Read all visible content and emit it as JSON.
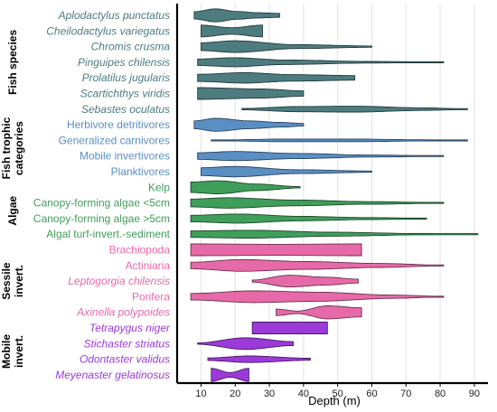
{
  "chart_data": {
    "type": "violin",
    "xlabel": "Depth (m)",
    "xlim": [
      3,
      94
    ],
    "xticks": [
      10,
      20,
      30,
      40,
      50,
      60,
      70,
      80,
      90
    ],
    "grid": true,
    "groups": [
      {
        "name": "Fish species",
        "color": "#4d7c7f",
        "label_lines": [
          "Fish species"
        ]
      },
      {
        "name": "Fish trophic categories",
        "color": "#5a8fc4",
        "label_lines": [
          "Fish trophic",
          "categories"
        ]
      },
      {
        "name": "Algae",
        "color": "#3f9e5a",
        "label_lines": [
          "Algae"
        ]
      },
      {
        "name": "Sessile invert.",
        "color": "#e76aa8",
        "label_lines": [
          "Sessile",
          "invert."
        ]
      },
      {
        "name": "Mobile invert.",
        "color": "#9c3ad9",
        "label_lines": [
          "Mobile",
          "invert."
        ]
      }
    ],
    "categories": [
      {
        "label": "Aplodactylus punctatus",
        "group": 0,
        "italic": true,
        "min": 8,
        "max": 33,
        "profile": [
          [
            0,
            0.55
          ],
          [
            0.25,
            1
          ],
          [
            0.5,
            0.6
          ],
          [
            0.75,
            0.4
          ],
          [
            1,
            0.3
          ]
        ]
      },
      {
        "label": "Cheilodactylus variegatus",
        "group": 0,
        "italic": true,
        "min": 10,
        "max": 28,
        "profile": [
          [
            0,
            0.9
          ],
          [
            0.5,
            0.5
          ],
          [
            1,
            0.9
          ]
        ]
      },
      {
        "label": "Chromis crusma",
        "group": 0,
        "italic": true,
        "min": 10,
        "max": 60,
        "profile": [
          [
            0,
            0.6
          ],
          [
            0.2,
            0.9
          ],
          [
            0.55,
            0.3
          ],
          [
            1,
            0.1
          ]
        ]
      },
      {
        "label": "Pinguipes chilensis",
        "group": 0,
        "italic": true,
        "min": 9,
        "max": 81,
        "profile": [
          [
            0,
            0.5
          ],
          [
            0.15,
            0.7
          ],
          [
            0.35,
            0.35
          ],
          [
            0.7,
            0.12
          ],
          [
            1,
            0.05
          ]
        ]
      },
      {
        "label": "Prolatilus jugularis",
        "group": 0,
        "italic": true,
        "min": 9,
        "max": 55,
        "profile": [
          [
            0,
            0.55
          ],
          [
            0.3,
            0.8
          ],
          [
            0.6,
            0.5
          ],
          [
            1,
            0.35
          ]
        ]
      },
      {
        "label": "Scartichthys viridis",
        "group": 0,
        "italic": true,
        "min": 9,
        "max": 40,
        "profile": [
          [
            0,
            0.9
          ],
          [
            0.6,
            0.7
          ],
          [
            1,
            0.4
          ]
        ]
      },
      {
        "label": "Sebastes oculatus",
        "group": 0,
        "italic": true,
        "min": 22,
        "max": 88,
        "profile": [
          [
            0,
            0.1
          ],
          [
            0.25,
            0.4
          ],
          [
            0.5,
            0.45
          ],
          [
            0.8,
            0.2
          ],
          [
            1,
            0.05
          ]
        ]
      },
      {
        "label": "Herbivore detritivores",
        "group": 1,
        "italic": false,
        "min": 8,
        "max": 40,
        "profile": [
          [
            0,
            0.6
          ],
          [
            0.2,
            1
          ],
          [
            0.5,
            0.6
          ],
          [
            0.8,
            0.35
          ],
          [
            1,
            0.2
          ]
        ]
      },
      {
        "label": "Generalized  carnivores",
        "group": 1,
        "italic": false,
        "min": 13,
        "max": 88,
        "profile": [
          [
            0,
            0.05
          ],
          [
            0.3,
            0.2
          ],
          [
            0.55,
            0.2
          ],
          [
            0.8,
            0.1
          ],
          [
            1,
            0.02
          ]
        ]
      },
      {
        "label": "Mobile invertivores",
        "group": 1,
        "italic": false,
        "min": 9,
        "max": 81,
        "profile": [
          [
            0,
            0.5
          ],
          [
            0.15,
            0.7
          ],
          [
            0.4,
            0.4
          ],
          [
            0.7,
            0.15
          ],
          [
            1,
            0.05
          ]
        ]
      },
      {
        "label": "Planktivores",
        "group": 1,
        "italic": false,
        "min": 10,
        "max": 60,
        "profile": [
          [
            0,
            0.6
          ],
          [
            0.2,
            0.8
          ],
          [
            0.55,
            0.3
          ],
          [
            1,
            0.1
          ]
        ]
      },
      {
        "label": "Kelp",
        "group": 2,
        "italic": false,
        "min": 7,
        "max": 39,
        "profile": [
          [
            0,
            0.8
          ],
          [
            0.25,
            1
          ],
          [
            0.6,
            0.5
          ],
          [
            1,
            0.1
          ]
        ]
      },
      {
        "label": "Canopy-forming algae <5cm",
        "group": 2,
        "italic": false,
        "min": 7,
        "max": 81,
        "profile": [
          [
            0,
            0.6
          ],
          [
            0.15,
            0.8
          ],
          [
            0.4,
            0.45
          ],
          [
            0.7,
            0.2
          ],
          [
            1,
            0.05
          ]
        ]
      },
      {
        "label": "Canopy-forming algae >5cm",
        "group": 2,
        "italic": false,
        "min": 7,
        "max": 76,
        "profile": [
          [
            0,
            0.5
          ],
          [
            0.2,
            0.7
          ],
          [
            0.45,
            0.35
          ],
          [
            0.75,
            0.15
          ],
          [
            1,
            0.05
          ]
        ]
      },
      {
        "label": "Algal turf-invert.-sediment",
        "group": 2,
        "italic": false,
        "min": 7,
        "max": 91,
        "profile": [
          [
            0,
            0.5
          ],
          [
            0.2,
            0.6
          ],
          [
            0.5,
            0.3
          ],
          [
            0.8,
            0.1
          ],
          [
            1,
            0.03
          ]
        ]
      },
      {
        "label": "Brachiopoda",
        "group": 3,
        "italic": false,
        "min": 7,
        "max": 57,
        "profile": [
          [
            0,
            0.9
          ],
          [
            0.5,
            0.85
          ],
          [
            1,
            0.9
          ]
        ]
      },
      {
        "label": "Actiniaria",
        "group": 3,
        "italic": false,
        "min": 7,
        "max": 81,
        "profile": [
          [
            0,
            0.5
          ],
          [
            0.2,
            0.9
          ],
          [
            0.45,
            0.6
          ],
          [
            0.75,
            0.3
          ],
          [
            1,
            0.05
          ]
        ]
      },
      {
        "label": "Leptogorgia chilensis",
        "group": 3,
        "italic": true,
        "min": 25,
        "max": 56,
        "profile": [
          [
            0,
            0.15
          ],
          [
            0.35,
            0.9
          ],
          [
            0.7,
            0.6
          ],
          [
            1,
            0.3
          ]
        ]
      },
      {
        "label": "Porifera",
        "group": 3,
        "italic": false,
        "min": 7,
        "max": 81,
        "profile": [
          [
            0,
            0.5
          ],
          [
            0.25,
            0.9
          ],
          [
            0.5,
            0.7
          ],
          [
            0.8,
            0.25
          ],
          [
            1,
            0.05
          ]
        ]
      },
      {
        "label": "Axinella polypoides",
        "group": 3,
        "italic": true,
        "min": 32,
        "max": 57,
        "profile": [
          [
            0,
            0.5
          ],
          [
            0.25,
            0.2
          ],
          [
            0.6,
            1
          ],
          [
            1,
            0.7
          ]
        ]
      },
      {
        "label": "Tetrapygus niger",
        "group": 4,
        "italic": true,
        "min": 25,
        "max": 47,
        "profile": [
          [
            0,
            0.9
          ],
          [
            0.5,
            0.9
          ],
          [
            1,
            0.9
          ]
        ]
      },
      {
        "label": "Stichaster striatus",
        "group": 4,
        "italic": true,
        "min": 9,
        "max": 37,
        "profile": [
          [
            0,
            0.1
          ],
          [
            0.5,
            0.9
          ],
          [
            1,
            0.3
          ]
        ]
      },
      {
        "label": "Odontaster validus",
        "group": 4,
        "italic": true,
        "min": 12,
        "max": 42,
        "profile": [
          [
            0,
            0.2
          ],
          [
            0.4,
            0.5
          ],
          [
            1,
            0.15
          ]
        ]
      },
      {
        "label": "Meyenaster gelatinosus",
        "group": 4,
        "italic": true,
        "min": 13,
        "max": 24,
        "profile": [
          [
            0,
            1
          ],
          [
            0.5,
            0.35
          ],
          [
            1,
            1
          ]
        ]
      }
    ]
  }
}
